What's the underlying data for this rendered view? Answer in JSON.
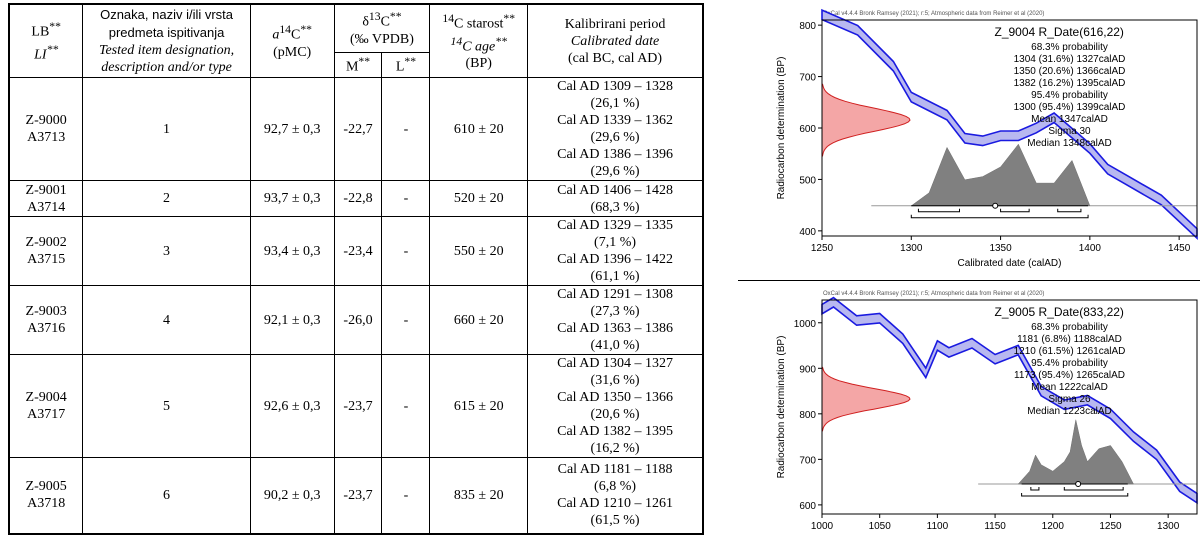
{
  "table": {
    "headers": {
      "lb": "LB",
      "lb_sup": "**",
      "li": "LI",
      "li_sup": "**",
      "oznaka": "Oznaka, naziv i/ili vrsta predmeta ispitivanja",
      "tested": "Tested item designation, description and/or type",
      "a14c_a": "a",
      "a14c_sup": "14",
      "a14c_c": "C",
      "a14c_star": "**",
      "a14c_unit": "(pMC)",
      "d13c_delta": "δ",
      "d13c_sup": "13",
      "d13c_c": "C",
      "d13c_star": "**",
      "d13c_unit": "(‰ VPDB)",
      "m": "M",
      "m_sup": "**",
      "l": "L",
      "l_sup": "**",
      "starost_sup": "14",
      "starost": "C starost",
      "starost_star": "**",
      "age_sup": "14",
      "age": "C age",
      "age_star": "**",
      "age_unit": "(BP)",
      "kal": "Kalibrirani period",
      "cal": "Calibrated date",
      "cal_unit": "(cal BC, cal AD)"
    },
    "rows": [
      {
        "lb": "Z-9000",
        "li": "A3713",
        "item": "1",
        "a14c": "92,7 ± 0,3",
        "m": "-22,7",
        "l": "-",
        "age": "610 ± 20",
        "periods": [
          "Cal AD 1309 – 1328",
          "(26,1 %)",
          "Cal AD 1339 – 1362",
          "(29,6 %)",
          "Cal AD 1386 – 1396",
          "(29,6 %)"
        ]
      },
      {
        "lb": "Z-9001",
        "li": "A3714",
        "item": "2",
        "a14c": "93,7 ± 0,3",
        "m": "-22,8",
        "l": "-",
        "age": "520 ± 20",
        "periods": [
          "Cal AD 1406 – 1428",
          "(68,3 %)"
        ]
      },
      {
        "lb": "Z-9002",
        "li": "A3715",
        "item": "3",
        "a14c": "93,4 ± 0,3",
        "m": "-23,4",
        "l": "-",
        "age": "550 ± 20",
        "periods": [
          "Cal AD 1329 – 1335",
          "(7,1 %)",
          "Cal AD 1396 – 1422",
          "(61,1 %)"
        ]
      },
      {
        "lb": "Z-9003",
        "li": "A3716",
        "item": "4",
        "a14c": "92,1 ± 0,3",
        "m": "-26,0",
        "l": "-",
        "age": "660 ± 20",
        "periods": [
          "Cal AD 1291 – 1308",
          "(27,3 %)",
          "Cal AD 1363 – 1386",
          "(41,0 %)"
        ]
      },
      {
        "lb": "Z-9004",
        "li": "A3717",
        "item": "5",
        "a14c": "92,6 ± 0,3",
        "m": "-23,7",
        "l": "-",
        "age": "615 ± 20",
        "periods": [
          "Cal AD 1304 – 1327",
          "(31,6 %)",
          "Cal AD 1350 – 1366",
          "(20,6 %)",
          "Cal AD 1382 – 1395",
          "(16,2 %)"
        ]
      },
      {
        "lb": "Z-9005",
        "li": "A3718",
        "item": "6",
        "a14c": "90,2 ± 0,3",
        "m": "-23,7",
        "l": "-",
        "age": "835 ± 20",
        "periods": [
          "Cal AD 1181 – 1188",
          "(6,8 %)",
          "Cal AD 1210 – 1261",
          "(61,5 %)"
        ]
      }
    ]
  },
  "plots": [
    {
      "header": "OxCal v4.4.4 Bronk Ramsey (2021); r:5; Atmospheric data from Reimer et al (2020)",
      "title": "Z_9004 R_Date(616,22)",
      "annotations": [
        "68.3% probability",
        "1304 (31.6%) 1327calAD",
        "1350 (20.6%) 1366calAD",
        "1382 (16.2%) 1395calAD",
        "95.4% probability",
        "1300 (95.4%) 1399calAD",
        "Mean 1347calAD",
        "Sigma 30",
        "Median 1348calAD"
      ],
      "ylabel": "Radiocarbon determination (BP)",
      "xlabel": "Calibrated date (calAD)",
      "xticks": [
        "1250",
        "1300",
        "1350",
        "1400",
        "1450"
      ],
      "yticks": [
        "800",
        "700",
        "600",
        "500",
        "400"
      ]
    },
    {
      "header": "OxCal v4.4.4 Bronk Ramsey (2021); r:5; Atmospheric data from Reimer et al (2020)",
      "title": "Z_9005 R_Date(833,22)",
      "annotations": [
        "68.3% probability",
        "1181 (6.8%) 1188calAD",
        "1210 (61.5%) 1261calAD",
        "95.4% probability",
        "1173 (95.4%) 1265calAD",
        "Mean 1222calAD",
        "Sigma 26",
        "Median 1223calAD"
      ],
      "ylabel": "Radiocarbon determination (BP)",
      "xlabel": "",
      "xticks": [
        "1000",
        "1050",
        "1100",
        "1150",
        "1200",
        "1250",
        "1300"
      ],
      "yticks": [
        "1000",
        "900",
        "800",
        "700",
        "600"
      ]
    }
  ],
  "chart_data": [
    {
      "type": "area",
      "title": "Z_9004 R_Date(616,22)",
      "xlabel": "Calibrated date (calAD)",
      "ylabel": "Radiocarbon determination (BP)",
      "xlim": [
        1250,
        1460
      ],
      "ylim": [
        390,
        810
      ],
      "series": [
        {
          "name": "calibration curve",
          "x": [
            1250,
            1270,
            1290,
            1300,
            1320,
            1330,
            1340,
            1350,
            1360,
            1370,
            1380,
            1390,
            1400,
            1410,
            1420,
            1440,
            1460
          ],
          "values": [
            820,
            790,
            720,
            660,
            625,
            580,
            575,
            585,
            585,
            600,
            620,
            590,
            560,
            520,
            500,
            460,
            395
          ]
        }
      ],
      "posterior": {
        "x": [
          1300,
          1310,
          1320,
          1330,
          1340,
          1350,
          1360,
          1370,
          1380,
          1390,
          1400
        ],
        "values": [
          0,
          0.2,
          0.9,
          0.4,
          0.45,
          0.6,
          0.95,
          0.35,
          0.35,
          0.7,
          0
        ]
      },
      "measurement": {
        "mean": 616,
        "sigma": 22
      },
      "ranges_68": [
        [
          1304,
          1327
        ],
        [
          1350,
          1366
        ],
        [
          1382,
          1395
        ]
      ],
      "ranges_95": [
        [
          1300,
          1399
        ]
      ],
      "mean_marker": 1347
    },
    {
      "type": "area",
      "title": "Z_9005 R_Date(833,22)",
      "xlabel": "",
      "ylabel": "Radiocarbon determination (BP)",
      "xlim": [
        1000,
        1325
      ],
      "ylim": [
        580,
        1050
      ],
      "series": [
        {
          "name": "calibration curve",
          "x": [
            1000,
            1010,
            1030,
            1050,
            1070,
            1090,
            1100,
            1110,
            1130,
            1150,
            1170,
            1190,
            1210,
            1230,
            1250,
            1270,
            1290,
            1310,
            1325
          ],
          "values": [
            1030,
            1045,
            1005,
            1010,
            965,
            890,
            950,
            935,
            955,
            920,
            940,
            850,
            820,
            830,
            800,
            750,
            710,
            640,
            615
          ]
        }
      ],
      "posterior": {
        "x": [
          1170,
          1180,
          1185,
          1190,
          1200,
          1210,
          1215,
          1220,
          1225,
          1230,
          1240,
          1250,
          1260,
          1270
        ],
        "values": [
          0,
          0.2,
          0.45,
          0.3,
          0.2,
          0.35,
          0.5,
          1,
          0.6,
          0.35,
          0.55,
          0.6,
          0.35,
          0
        ]
      },
      "measurement": {
        "mean": 833,
        "sigma": 22
      },
      "ranges_68": [
        [
          1181,
          1188
        ],
        [
          1210,
          1261
        ]
      ],
      "ranges_95": [
        [
          1173,
          1265
        ]
      ],
      "mean_marker": 1222
    }
  ]
}
